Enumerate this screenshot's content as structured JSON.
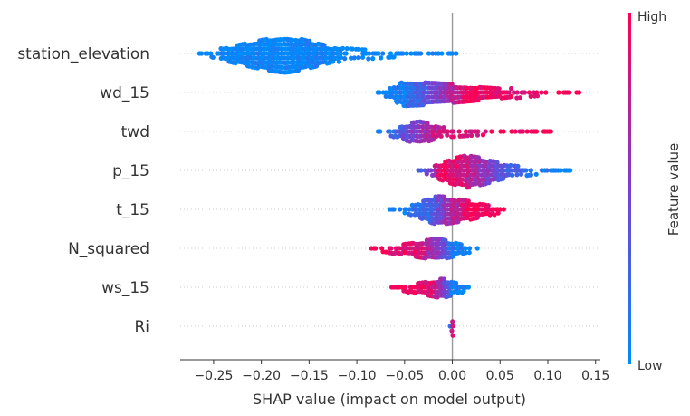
{
  "chart_data": {
    "type": "scatter",
    "subtype": "shap-beeswarm",
    "title": "",
    "xlabel": "SHAP value (impact on model output)",
    "ylabel": "",
    "xlim": [
      -0.285,
      0.155
    ],
    "x_ticks": [
      "−0.25",
      "−0.20",
      "−0.15",
      "−0.10",
      "−0.05",
      "0.00",
      "0.05",
      "0.10",
      "0.15"
    ],
    "x_tick_values": [
      -0.25,
      -0.2,
      -0.15,
      -0.1,
      -0.05,
      0.0,
      0.05,
      0.1,
      0.15
    ],
    "features": [
      "station_elevation",
      "wd_15",
      "twd",
      "p_15",
      "t_15",
      "N_squared",
      "ws_15",
      "Ri"
    ],
    "zero_line": 0.0,
    "grid": "dotted horizontal per feature row",
    "colorbar": {
      "label": "Feature value",
      "high_label": "High",
      "low_label": "Low",
      "low_color": "#008bfb",
      "high_color": "#ff0052"
    },
    "series": [
      {
        "feature": "station_elevation",
        "min": -0.265,
        "core_min": -0.24,
        "center": -0.175,
        "core_max": -0.12,
        "max": 0.005,
        "height": 1.0,
        "points": [
          {
            "x": -0.265,
            "v": 0.0
          },
          {
            "x": -0.25,
            "v": 0.0
          },
          {
            "x": -0.21,
            "v": 0.05
          },
          {
            "x": -0.175,
            "v": 0.0
          },
          {
            "x": -0.14,
            "v": 0.05
          },
          {
            "x": -0.1,
            "v": 0.0
          },
          {
            "x": -0.085,
            "v": 0.0
          },
          {
            "x": -0.075,
            "v": 0.0
          },
          {
            "x": -0.06,
            "v": 0.0
          },
          {
            "x": -0.045,
            "v": 0.0
          },
          {
            "x": -0.03,
            "v": 0.0
          },
          {
            "x": -0.02,
            "v": 0.0
          },
          {
            "x": -0.01,
            "v": 0.0
          },
          {
            "x": 0.005,
            "v": 0.0
          }
        ]
      },
      {
        "feature": "wd_15",
        "min": -0.08,
        "core_min": -0.065,
        "center": -0.05,
        "core_max": 0.06,
        "max": 0.135,
        "height": 0.7,
        "points": [
          {
            "x": -0.08,
            "v": 0.0
          },
          {
            "x": -0.05,
            "v": 0.1
          },
          {
            "x": -0.02,
            "v": 0.45
          },
          {
            "x": 0.02,
            "v": 0.95
          },
          {
            "x": 0.05,
            "v": 0.9
          },
          {
            "x": 0.08,
            "v": 0.9
          },
          {
            "x": 0.1,
            "v": 0.95
          },
          {
            "x": 0.12,
            "v": 1.0
          },
          {
            "x": 0.135,
            "v": 1.0
          }
        ]
      },
      {
        "feature": "twd",
        "min": -0.078,
        "core_min": -0.06,
        "center": -0.035,
        "core_max": -0.01,
        "max": 0.105,
        "height": 0.65,
        "points": [
          {
            "x": -0.078,
            "v": 0.0
          },
          {
            "x": -0.05,
            "v": 0.4
          },
          {
            "x": -0.035,
            "v": 0.55
          },
          {
            "x": -0.02,
            "v": 0.75
          },
          {
            "x": 0.01,
            "v": 0.85
          },
          {
            "x": 0.04,
            "v": 0.9
          },
          {
            "x": 0.08,
            "v": 1.0
          },
          {
            "x": 0.105,
            "v": 1.0
          }
        ]
      },
      {
        "feature": "p_15",
        "min": -0.035,
        "core_min": -0.02,
        "center": 0.015,
        "core_max": 0.06,
        "max": 0.13,
        "height": 0.9,
        "points": [
          {
            "x": -0.035,
            "v": 0.2
          },
          {
            "x": -0.01,
            "v": 0.95
          },
          {
            "x": 0.01,
            "v": 0.85
          },
          {
            "x": 0.03,
            "v": 0.6
          },
          {
            "x": 0.06,
            "v": 0.3
          },
          {
            "x": 0.09,
            "v": 0.1
          },
          {
            "x": 0.11,
            "v": 0.05
          },
          {
            "x": 0.13,
            "v": 0.0
          }
        ]
      },
      {
        "feature": "t_15",
        "min": -0.065,
        "core_min": -0.04,
        "center": -0.015,
        "core_max": 0.04,
        "max": 0.06,
        "height": 0.8,
        "points": [
          {
            "x": -0.065,
            "v": 0.0
          },
          {
            "x": -0.04,
            "v": 0.15
          },
          {
            "x": -0.02,
            "v": 0.3
          },
          {
            "x": 0.0,
            "v": 0.7
          },
          {
            "x": 0.02,
            "v": 0.95
          },
          {
            "x": 0.04,
            "v": 1.0
          },
          {
            "x": 0.06,
            "v": 1.0
          }
        ]
      },
      {
        "feature": "N_squared",
        "min": -0.095,
        "core_min": -0.06,
        "center": -0.015,
        "core_max": 0.015,
        "max": 0.028,
        "height": 0.6,
        "points": [
          {
            "x": -0.095,
            "v": 1.0
          },
          {
            "x": -0.06,
            "v": 0.95
          },
          {
            "x": -0.035,
            "v": 0.85
          },
          {
            "x": -0.015,
            "v": 0.6
          },
          {
            "x": 0.0,
            "v": 0.15
          },
          {
            "x": 0.02,
            "v": 0.0
          }
        ]
      },
      {
        "feature": "ws_15",
        "min": -0.065,
        "core_min": -0.045,
        "center": -0.01,
        "core_max": 0.01,
        "max": 0.02,
        "height": 0.55,
        "points": [
          {
            "x": -0.065,
            "v": 1.0
          },
          {
            "x": -0.04,
            "v": 0.95
          },
          {
            "x": -0.02,
            "v": 0.85
          },
          {
            "x": -0.008,
            "v": 0.5
          },
          {
            "x": 0.0,
            "v": 0.1
          },
          {
            "x": 0.02,
            "v": 0.0
          }
        ]
      },
      {
        "feature": "Ri",
        "min": -0.002,
        "core_min": -0.001,
        "center": 0.0,
        "core_max": 0.001,
        "max": 0.002,
        "height": 0.5,
        "points": [
          {
            "x": 0.0,
            "v": 0.1
          },
          {
            "x": 0.0,
            "v": 0.9
          }
        ]
      }
    ]
  }
}
